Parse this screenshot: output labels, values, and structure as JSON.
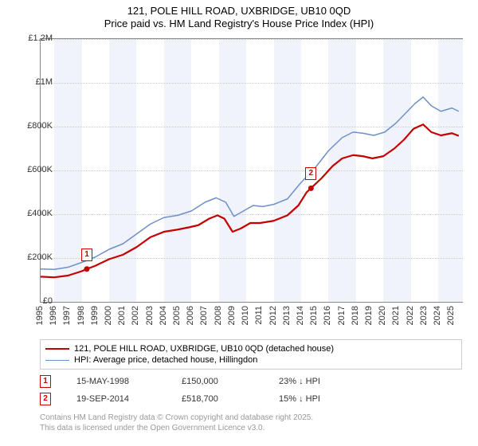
{
  "title_line1": "121, POLE HILL ROAD, UXBRIDGE, UB10 0QD",
  "title_line2": "Price paid vs. HM Land Registry's House Price Index (HPI)",
  "chart": {
    "type": "line",
    "x_start": 1995,
    "x_end": 2025.8,
    "y_min": 0,
    "y_max": 1200000,
    "y_ticks": [
      0,
      200000,
      400000,
      600000,
      800000,
      1000000,
      1200000
    ],
    "y_tick_labels": [
      "£0",
      "£200K",
      "£400K",
      "£600K",
      "£800K",
      "£1M",
      "£1.2M"
    ],
    "x_ticks": [
      1995,
      1996,
      1997,
      1998,
      1999,
      2000,
      2001,
      2002,
      2003,
      2004,
      2005,
      2006,
      2007,
      2008,
      2009,
      2010,
      2011,
      2012,
      2013,
      2014,
      2015,
      2016,
      2017,
      2018,
      2019,
      2020,
      2021,
      2022,
      2023,
      2024,
      2025
    ],
    "background_color": "#ffffff",
    "alt_band_color": "#f0f3fa",
    "grid_color": "#cccccc",
    "axis_color": "#888888",
    "series": [
      {
        "id": "property",
        "color": "#c40000",
        "width": 2.2,
        "points": [
          [
            1995.0,
            115000
          ],
          [
            1996.0,
            112000
          ],
          [
            1997.0,
            120000
          ],
          [
            1998.0,
            140000
          ],
          [
            1998.37,
            150000
          ],
          [
            1999.0,
            165000
          ],
          [
            2000.0,
            195000
          ],
          [
            2001.0,
            215000
          ],
          [
            2002.0,
            250000
          ],
          [
            2003.0,
            295000
          ],
          [
            2004.0,
            320000
          ],
          [
            2005.0,
            330000
          ],
          [
            2005.8,
            340000
          ],
          [
            2006.5,
            350000
          ],
          [
            2007.3,
            380000
          ],
          [
            2007.9,
            395000
          ],
          [
            2008.4,
            380000
          ],
          [
            2009.0,
            320000
          ],
          [
            2009.6,
            335000
          ],
          [
            2010.3,
            360000
          ],
          [
            2011.0,
            360000
          ],
          [
            2012.0,
            370000
          ],
          [
            2013.0,
            395000
          ],
          [
            2013.8,
            440000
          ],
          [
            2014.4,
            500000
          ],
          [
            2014.72,
            518700
          ],
          [
            2015.5,
            565000
          ],
          [
            2016.3,
            620000
          ],
          [
            2017.0,
            655000
          ],
          [
            2017.8,
            670000
          ],
          [
            2018.5,
            665000
          ],
          [
            2019.2,
            655000
          ],
          [
            2020.0,
            665000
          ],
          [
            2020.8,
            700000
          ],
          [
            2021.5,
            740000
          ],
          [
            2022.2,
            790000
          ],
          [
            2022.9,
            810000
          ],
          [
            2023.5,
            775000
          ],
          [
            2024.2,
            760000
          ],
          [
            2025.0,
            770000
          ],
          [
            2025.5,
            758000
          ]
        ]
      },
      {
        "id": "hpi",
        "color": "#6e8fc9",
        "width": 1.5,
        "points": [
          [
            1995.0,
            150000
          ],
          [
            1996.0,
            148000
          ],
          [
            1997.0,
            158000
          ],
          [
            1998.0,
            180000
          ],
          [
            1999.0,
            205000
          ],
          [
            2000.0,
            240000
          ],
          [
            2001.0,
            265000
          ],
          [
            2002.0,
            310000
          ],
          [
            2003.0,
            355000
          ],
          [
            2004.0,
            385000
          ],
          [
            2005.0,
            395000
          ],
          [
            2006.0,
            415000
          ],
          [
            2007.0,
            455000
          ],
          [
            2007.8,
            475000
          ],
          [
            2008.5,
            455000
          ],
          [
            2009.1,
            390000
          ],
          [
            2009.8,
            415000
          ],
          [
            2010.5,
            440000
          ],
          [
            2011.2,
            435000
          ],
          [
            2012.0,
            445000
          ],
          [
            2013.0,
            470000
          ],
          [
            2014.0,
            545000
          ],
          [
            2015.0,
            610000
          ],
          [
            2016.0,
            690000
          ],
          [
            2017.0,
            750000
          ],
          [
            2017.8,
            775000
          ],
          [
            2018.5,
            770000
          ],
          [
            2019.3,
            760000
          ],
          [
            2020.1,
            775000
          ],
          [
            2020.9,
            815000
          ],
          [
            2021.6,
            860000
          ],
          [
            2022.3,
            905000
          ],
          [
            2022.9,
            935000
          ],
          [
            2023.5,
            895000
          ],
          [
            2024.2,
            870000
          ],
          [
            2025.0,
            885000
          ],
          [
            2025.5,
            870000
          ]
        ]
      }
    ],
    "transactions": [
      {
        "num": "1",
        "year": 1998.37,
        "price": 150000
      },
      {
        "num": "2",
        "year": 2014.72,
        "price": 518700
      }
    ]
  },
  "legend": {
    "series1": "121, POLE HILL ROAD, UXBRIDGE, UB10 0QD (detached house)",
    "series2": "HPI: Average price, detached house, Hillingdon"
  },
  "tx_rows": [
    {
      "num": "1",
      "date": "15-MAY-1998",
      "price": "£150,000",
      "delta": "23% ↓ HPI"
    },
    {
      "num": "2",
      "date": "19-SEP-2014",
      "price": "£518,700",
      "delta": "15% ↓ HPI"
    }
  ],
  "footer_line1": "Contains HM Land Registry data © Crown copyright and database right 2025.",
  "footer_line2": "This data is licensed under the Open Government Licence v3.0."
}
